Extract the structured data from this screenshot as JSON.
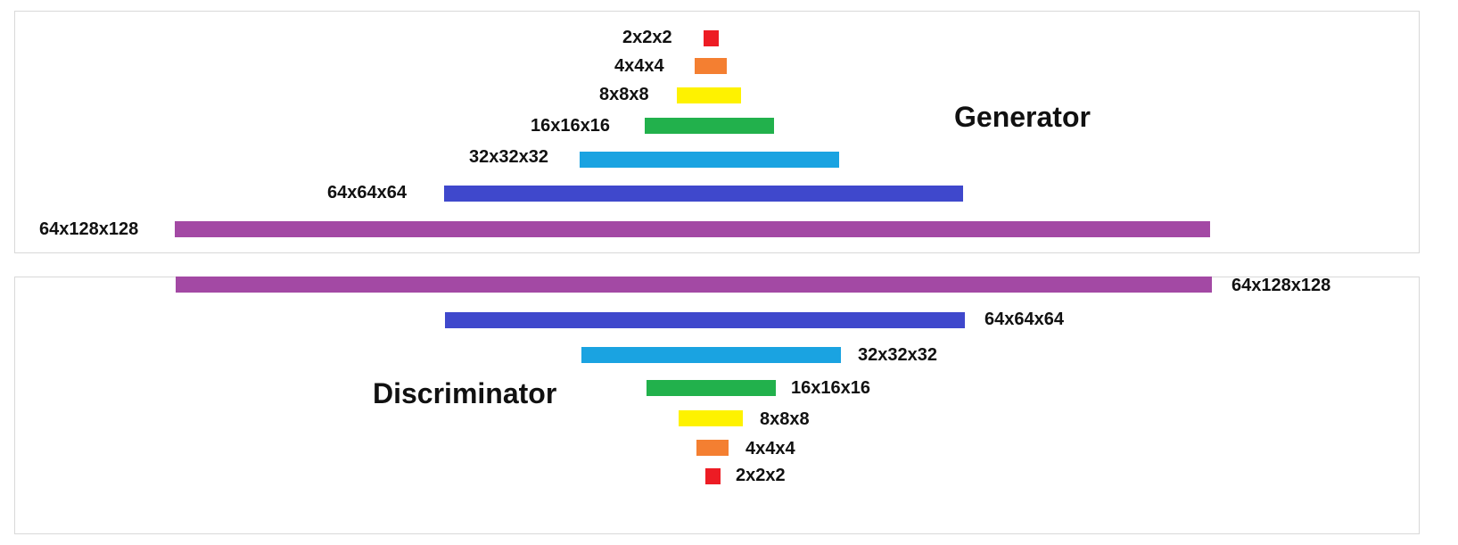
{
  "generator": {
    "title": "Generator",
    "layers": [
      {
        "label": "2x2x2",
        "color": "#ed1c24"
      },
      {
        "label": "4x4x4",
        "color": "#f47f31"
      },
      {
        "label": "8x8x8",
        "color": "#fef200"
      },
      {
        "label": "16x16x16",
        "color": "#22b14c"
      },
      {
        "label": "32x32x32",
        "color": "#1aa3e1"
      },
      {
        "label": "64x64x64",
        "color": "#3f48cc"
      },
      {
        "label": "64x128x128",
        "color": "#a349a4"
      }
    ]
  },
  "discriminator": {
    "title": "Discriminator",
    "layers": [
      {
        "label": "64x128x128",
        "color": "#a349a4"
      },
      {
        "label": "64x64x64",
        "color": "#3f48cc"
      },
      {
        "label": "32x32x32",
        "color": "#1aa3e1"
      },
      {
        "label": "16x16x16",
        "color": "#22b14c"
      },
      {
        "label": "8x8x8",
        "color": "#fef200"
      },
      {
        "label": "4x4x4",
        "color": "#f47f31"
      },
      {
        "label": "2x2x2",
        "color": "#ed1c24"
      }
    ]
  }
}
